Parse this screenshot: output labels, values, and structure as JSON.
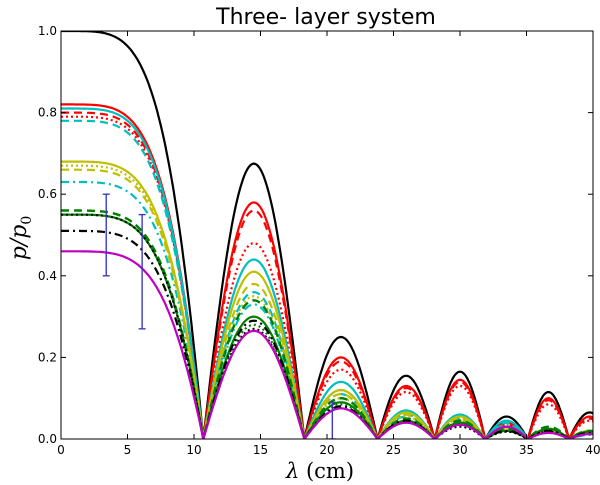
{
  "chart_data": {
    "type": "line",
    "title": "Three- layer system",
    "xlabel": {
      "symbol": "λ",
      "unit": " (cm)"
    },
    "ylabel": {
      "base": "p/p",
      "sub": "0"
    },
    "xlim": [
      0,
      40
    ],
    "ylim": [
      0,
      1.0
    ],
    "xticks": [
      "0",
      "5",
      "10",
      "15",
      "20",
      "25",
      "30",
      "35",
      "40"
    ],
    "yticks": [
      "0.0",
      "0.2",
      "0.4",
      "0.6",
      "0.8",
      "1.0"
    ],
    "grid": false,
    "zeros": [
      10.7,
      18.3,
      23.8,
      28.1,
      31.9,
      35.1,
      38.2
    ],
    "series": [
      {
        "color": "#000000",
        "dash": "solid",
        "width": 2.2,
        "plateau": 1.0,
        "peaks": [
          0.675,
          0.25,
          0.155,
          0.165,
          0.055,
          0.115,
          0.065
        ]
      },
      {
        "color": "#ff0000",
        "dash": "solid",
        "width": 2.2,
        "plateau": 0.82,
        "peaks": [
          0.58,
          0.2,
          0.13,
          0.145,
          0.04,
          0.1,
          0.055
        ]
      },
      {
        "color": "#ff0000",
        "dash": "dashed",
        "width": 2.2,
        "plateau": 0.8,
        "peaks": [
          0.56,
          0.19,
          0.125,
          0.14,
          0.035,
          0.095,
          0.05
        ]
      },
      {
        "color": "#ff0000",
        "dash": "dotted",
        "width": 2.2,
        "plateau": 0.79,
        "peaks": [
          0.48,
          0.17,
          0.115,
          0.13,
          0.03,
          0.085,
          0.045
        ]
      },
      {
        "color": "#00bfbf",
        "dash": "solid",
        "width": 2.2,
        "plateau": 0.81,
        "peaks": [
          0.44,
          0.14,
          0.07,
          0.06,
          0.045,
          0.02,
          0.015
        ]
      },
      {
        "color": "#00bfbf",
        "dash": "dashed",
        "width": 2.2,
        "plateau": 0.78,
        "peaks": [
          0.36,
          0.12,
          0.06,
          0.05,
          0.04,
          0.018,
          0.012
        ]
      },
      {
        "color": "#00bfbf",
        "dash": "dashdot",
        "width": 2.2,
        "plateau": 0.63,
        "peaks": [
          0.33,
          0.11,
          0.055,
          0.045,
          0.035,
          0.015,
          0.01
        ]
      },
      {
        "color": "#bfbf00",
        "dash": "solid",
        "width": 2.2,
        "plateau": 0.68,
        "peaks": [
          0.41,
          0.12,
          0.065,
          0.055,
          0.03,
          0.025,
          0.02
        ]
      },
      {
        "color": "#bfbf00",
        "dash": "dashed",
        "width": 2.2,
        "plateau": 0.66,
        "peaks": [
          0.38,
          0.11,
          0.06,
          0.05,
          0.028,
          0.022,
          0.018
        ]
      },
      {
        "color": "#bfbf00",
        "dash": "dotted",
        "width": 2.2,
        "plateau": 0.67,
        "peaks": [
          0.35,
          0.1,
          0.055,
          0.045,
          0.025,
          0.02,
          0.015
        ]
      },
      {
        "color": "#007f00",
        "dash": "dashed",
        "width": 2.4,
        "plateau": 0.56,
        "peaks": [
          0.34,
          0.1,
          0.05,
          0.045,
          0.025,
          0.03,
          0.02
        ]
      },
      {
        "color": "#007f00",
        "dash": "solid",
        "width": 2.2,
        "plateau": 0.55,
        "peaks": [
          0.3,
          0.09,
          0.045,
          0.04,
          0.02,
          0.025,
          0.018
        ]
      },
      {
        "color": "#007f00",
        "dash": "dotted",
        "width": 2.2,
        "plateau": 0.55,
        "peaks": [
          0.28,
          0.085,
          0.04,
          0.035,
          0.018,
          0.02,
          0.015
        ]
      },
      {
        "color": "#000000",
        "dash": "dashdot",
        "width": 2.2,
        "plateau": 0.51,
        "peaks": [
          0.29,
          0.08,
          0.045,
          0.035,
          0.02,
          0.02,
          0.015
        ]
      },
      {
        "color": "#000000",
        "dash": "dotted",
        "width": 2.0,
        "plateau": 0.55,
        "peaks": [
          0.27,
          0.075,
          0.04,
          0.03,
          0.018,
          0.018,
          0.012
        ]
      },
      {
        "color": "#bf00bf",
        "dash": "solid",
        "width": 2.2,
        "plateau": 0.46,
        "peaks": [
          0.265,
          0.075,
          0.04,
          0.035,
          0.03,
          0.015,
          0.012
        ]
      }
    ],
    "error_bars": [
      {
        "x": 3.4,
        "y": 0.5,
        "low": 0.4,
        "high": 0.6,
        "color": "#3b3bbf"
      },
      {
        "x": 6.1,
        "y": 0.42,
        "low": 0.27,
        "high": 0.55,
        "color": "#3b3bbf"
      },
      {
        "x": 20.4,
        "y": 0.05,
        "low": 0.0,
        "high": 0.09,
        "color": "#3b3bbf"
      }
    ]
  }
}
